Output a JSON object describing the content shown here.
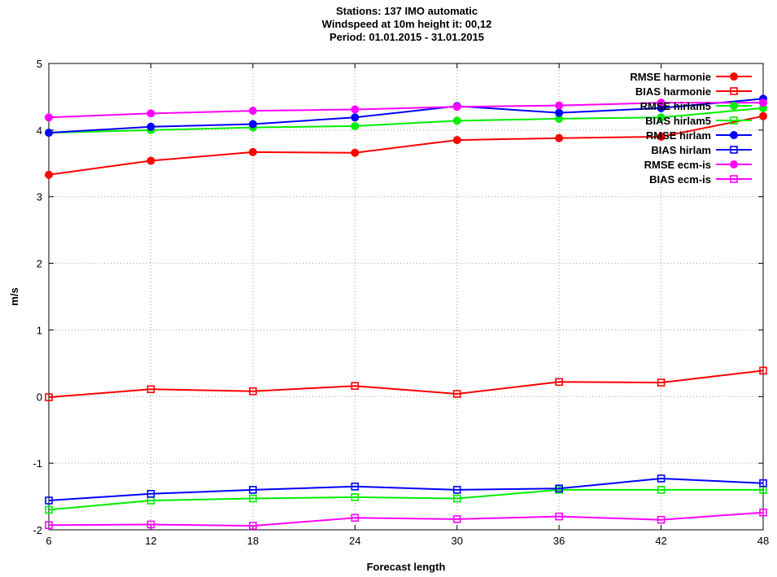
{
  "chart_data": {
    "type": "line",
    "title": "Stations: 137 IMO automatic",
    "subtitle1": "Windspeed at 10m height  it: 00,12",
    "subtitle2": "Period: 01.01.2015 - 31.01.2015",
    "xlabel": "Forecast length",
    "ylabel": "m/s",
    "x": [
      6,
      12,
      18,
      24,
      30,
      36,
      42,
      48
    ],
    "x_ticks": [
      "6",
      "12",
      "18",
      "24",
      "30",
      "36",
      "42",
      "48"
    ],
    "y_ticks": [
      "-2",
      "-1",
      "0",
      "1",
      "2",
      "3",
      "4",
      "5"
    ],
    "xlim": [
      6,
      48
    ],
    "ylim": [
      -2,
      5
    ],
    "grid": true,
    "legend_position": "top-right",
    "series": [
      {
        "name": "RMSE harmonie",
        "color": "#ff0000",
        "marker": "circle",
        "values": [
          3.33,
          3.54,
          3.67,
          3.66,
          3.85,
          3.88,
          3.9,
          4.21
        ]
      },
      {
        "name": "BIAS harmonie",
        "color": "#ff0000",
        "marker": "square",
        "values": [
          -0.01,
          0.11,
          0.08,
          0.16,
          0.04,
          0.22,
          0.21,
          0.39
        ]
      },
      {
        "name": "RMSE hirlam5",
        "color": "#00ee00",
        "marker": "circle",
        "values": [
          3.96,
          4.0,
          4.04,
          4.06,
          4.14,
          4.17,
          4.19,
          4.33
        ]
      },
      {
        "name": "BIAS hirlam5",
        "color": "#00ee00",
        "marker": "square",
        "values": [
          -1.7,
          -1.56,
          -1.53,
          -1.51,
          -1.53,
          -1.4,
          -1.4,
          -1.4
        ]
      },
      {
        "name": "RMSE hirlam",
        "color": "#0000ff",
        "marker": "circle",
        "values": [
          3.96,
          4.05,
          4.09,
          4.19,
          4.36,
          4.26,
          4.33,
          4.47
        ]
      },
      {
        "name": "BIAS hirlam",
        "color": "#0000ff",
        "marker": "square",
        "values": [
          -1.56,
          -1.46,
          -1.4,
          -1.35,
          -1.4,
          -1.38,
          -1.23,
          -1.3
        ]
      },
      {
        "name": "RMSE ecm-is",
        "color": "#ff00ff",
        "marker": "circle",
        "values": [
          4.19,
          4.25,
          4.29,
          4.31,
          4.35,
          4.37,
          4.41,
          4.41
        ]
      },
      {
        "name": "BIAS ecm-is",
        "color": "#ff00ff",
        "marker": "square",
        "values": [
          -1.93,
          -1.92,
          -1.94,
          -1.82,
          -1.84,
          -1.8,
          -1.85,
          -1.74
        ]
      }
    ]
  }
}
